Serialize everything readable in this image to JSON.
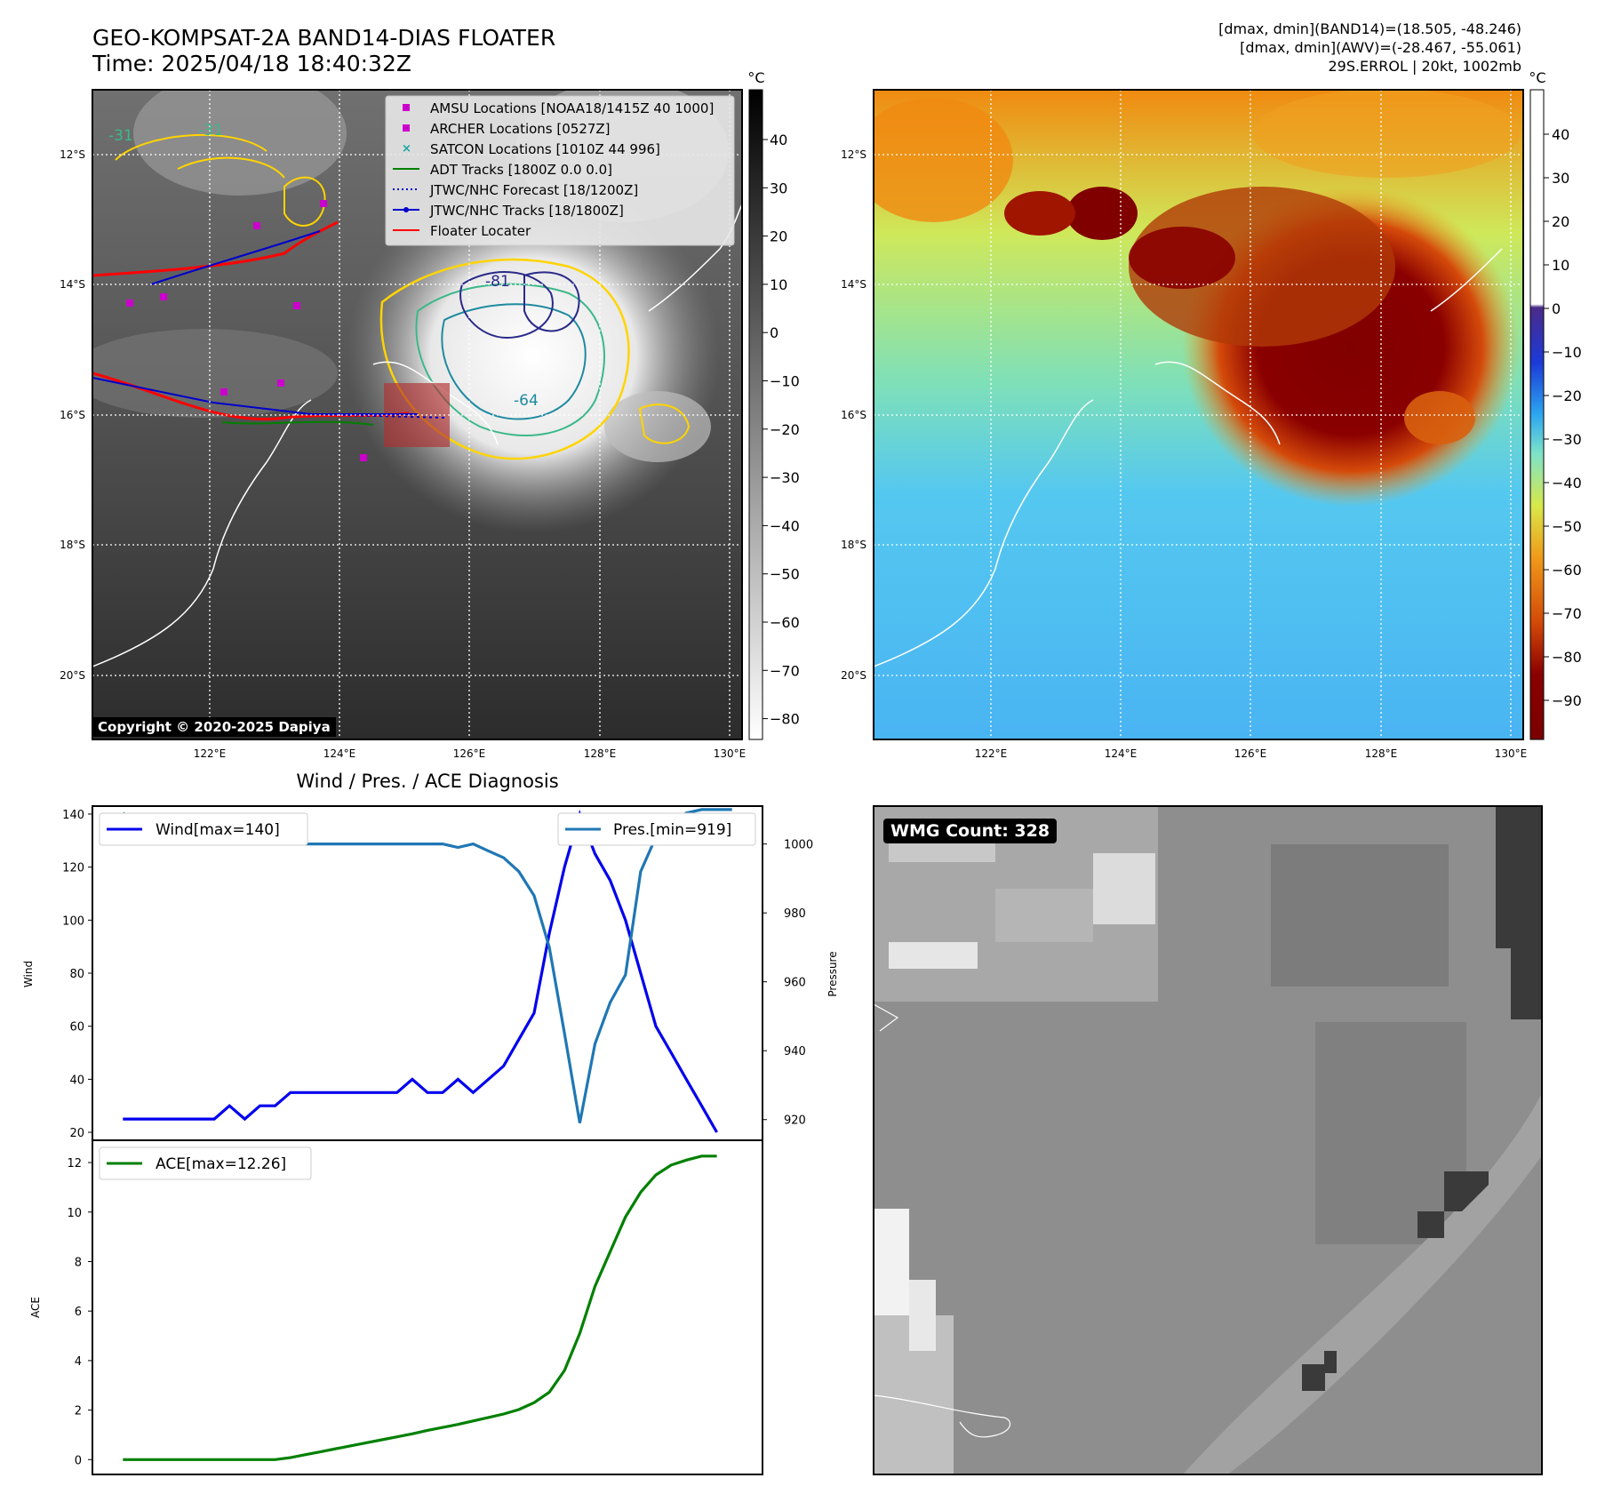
{
  "header": {
    "title": "GEO-KOMPSAT-2A BAND14-DIAS FLOATER",
    "time": "Time: 2025/04/18 18:40:32Z",
    "stats_line1": "[dmax, dmin](BAND14)=(18.505, -48.246)",
    "stats_line2": "[dmax, dmin](AWV)=(-28.467, -55.061)",
    "stats_line3": "29S.ERROL | 20kt, 1002mb"
  },
  "maps": {
    "lat_ticks": [
      "12°S",
      "14°S",
      "16°S",
      "18°S",
      "20°S"
    ],
    "lon_ticks": [
      "122°E",
      "124°E",
      "126°E",
      "128°E",
      "130°E"
    ],
    "colorbar_unit": "°C",
    "ir_colorbar_ticks": [
      "40",
      "30",
      "20",
      "10",
      "0",
      "−10",
      "−20",
      "−30",
      "−40",
      "−50",
      "−60",
      "−70",
      "−80"
    ],
    "color_colorbar_ticks": [
      "40",
      "30",
      "20",
      "10",
      "0",
      "−10",
      "−20",
      "−30",
      "−40",
      "−50",
      "−60",
      "−70",
      "−80",
      "−90"
    ],
    "contour_labels": [
      "-31",
      "-31",
      "-64",
      "-81"
    ],
    "copyright": "Copyright © 2020-2025 Dapiya",
    "legend": [
      {
        "label": "AMSU Locations [NOAA18/1415Z 40 1000]",
        "color": "#cc00cc",
        "marker": "square"
      },
      {
        "label": "ARCHER Locations [0527Z]",
        "color": "#cc00cc",
        "marker": "square"
      },
      {
        "label": "SATCON Locations [1010Z 44 996]",
        "color": "#17a6a6",
        "marker": "x"
      },
      {
        "label": "ADT Tracks [1800Z 0.0 0.0]",
        "color": "#008000",
        "marker": "line"
      },
      {
        "label": "JTWC/NHC Forecast [18/1200Z]",
        "color": "#0000cc",
        "marker": "dotted"
      },
      {
        "label": "JTWC/NHC Tracks [18/1800Z]",
        "color": "#0000cc",
        "marker": "line-dot"
      },
      {
        "label": "Floater Locater",
        "color": "#ff0000",
        "marker": "line"
      }
    ]
  },
  "wmg": {
    "label": "WMG Count: 328"
  },
  "chart_data": [
    {
      "type": "line",
      "title": "Wind / Pres. / ACE Diagnosis",
      "ylabel": "Wind",
      "y2label": "Pressure",
      "ylim": [
        17,
        143
      ],
      "y2lim": [
        914,
        1011
      ],
      "yticks": [
        20,
        40,
        60,
        80,
        100,
        120,
        140
      ],
      "y2ticks": [
        920,
        940,
        960,
        980,
        1000
      ],
      "x": [
        0,
        1,
        2,
        3,
        4,
        5,
        6,
        7,
        8,
        9,
        10,
        11,
        12,
        13,
        14,
        15,
        16,
        17,
        18,
        19,
        20,
        21,
        22,
        23,
        24,
        25,
        26,
        27,
        28,
        29,
        30,
        31,
        32,
        33,
        34,
        35,
        36,
        37,
        38,
        39,
        40
      ],
      "series": [
        {
          "name": "Wind[max=140]",
          "axis": "left",
          "color": "#0000ee",
          "values": [
            25,
            25,
            25,
            25,
            25,
            25,
            25,
            30,
            25,
            30,
            30,
            35,
            35,
            35,
            35,
            35,
            35,
            35,
            35,
            40,
            35,
            35,
            40,
            35,
            40,
            45,
            55,
            65,
            95,
            120,
            140,
            125,
            115,
            100,
            80,
            60,
            50,
            40,
            30,
            20,
            null
          ]
        },
        {
          "name": "Pres.[min=919]",
          "axis": "right",
          "color": "#1f77b4",
          "values": [
            1009,
            1006,
            1006,
            1005,
            1003,
            1001,
            1000,
            1000,
            1001,
            1000,
            1000,
            1000,
            1000,
            1000,
            1000,
            1000,
            1000,
            1000,
            1000,
            1000,
            1000,
            1000,
            999,
            1000,
            998,
            996,
            992,
            985,
            970,
            945,
            919,
            942,
            954,
            962,
            992,
            1002,
            1006,
            1009,
            1010,
            1010,
            1010
          ]
        }
      ]
    },
    {
      "type": "line",
      "ylabel": "ACE",
      "ylim": [
        -0.6,
        12.9
      ],
      "yticks": [
        0,
        2,
        4,
        6,
        8,
        10,
        12
      ],
      "x": [
        0,
        1,
        2,
        3,
        4,
        5,
        6,
        7,
        8,
        9,
        10,
        11,
        12,
        13,
        14,
        15,
        16,
        17,
        18,
        19,
        20,
        21,
        22,
        23,
        24,
        25,
        26,
        27,
        28,
        29,
        30,
        31,
        32,
        33,
        34,
        35,
        36,
        37,
        38,
        39
      ],
      "series": [
        {
          "name": "ACE[max=12.26]",
          "color": "#008000",
          "values": [
            0,
            0,
            0,
            0,
            0,
            0,
            0,
            0,
            0,
            0,
            0,
            0.08,
            0.2,
            0.32,
            0.44,
            0.56,
            0.68,
            0.8,
            0.92,
            1.04,
            1.18,
            1.3,
            1.42,
            1.56,
            1.7,
            1.84,
            2.02,
            2.3,
            2.72,
            3.6,
            5.1,
            7.0,
            8.4,
            9.8,
            10.8,
            11.5,
            11.9,
            12.1,
            12.26,
            12.26
          ]
        }
      ]
    }
  ]
}
